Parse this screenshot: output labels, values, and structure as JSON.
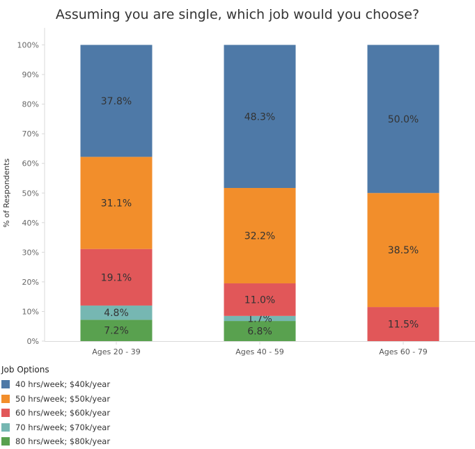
{
  "chart_data": {
    "type": "bar",
    "stacked": true,
    "title": "Assuming you are single, which job would you choose?",
    "ylabel": "% of Respondents",
    "xlabel": "",
    "ylim": [
      0,
      100
    ],
    "yticks": [
      "0%",
      "10%",
      "20%",
      "30%",
      "40%",
      "50%",
      "60%",
      "70%",
      "80%",
      "90%",
      "100%"
    ],
    "categories": [
      "Ages 20 - 39",
      "Ages 40 - 59",
      "Ages 60 - 79"
    ],
    "series": [
      {
        "name": "80 hrs/week; $80k/year",
        "color": "#59a14f",
        "values": [
          7.2,
          6.8,
          0
        ],
        "labels": [
          "7.2%",
          "6.8%",
          ""
        ]
      },
      {
        "name": "70 hrs/week; $70k/year",
        "color": "#76b7b2",
        "values": [
          4.8,
          1.7,
          0
        ],
        "labels": [
          "4.8%",
          "1.7%",
          ""
        ]
      },
      {
        "name": "60 hrs/week; $60k/year",
        "color": "#e15759",
        "values": [
          19.1,
          11.0,
          11.5
        ],
        "labels": [
          "19.1%",
          "11.0%",
          "11.5%"
        ]
      },
      {
        "name": "50 hrs/week; $50k/year",
        "color": "#f28e2b",
        "values": [
          31.1,
          32.2,
          38.5
        ],
        "labels": [
          "31.1%",
          "32.2%",
          "38.5%"
        ]
      },
      {
        "name": "40 hrs/week; $40k/year",
        "color": "#4e79a7",
        "values": [
          37.8,
          48.3,
          50.0
        ],
        "labels": [
          "37.8%",
          "48.3%",
          "50.0%"
        ]
      }
    ],
    "legend": {
      "title": "Job Options",
      "placement": "bottom-left",
      "order": [
        4,
        3,
        2,
        1,
        0
      ]
    },
    "grid": false
  }
}
